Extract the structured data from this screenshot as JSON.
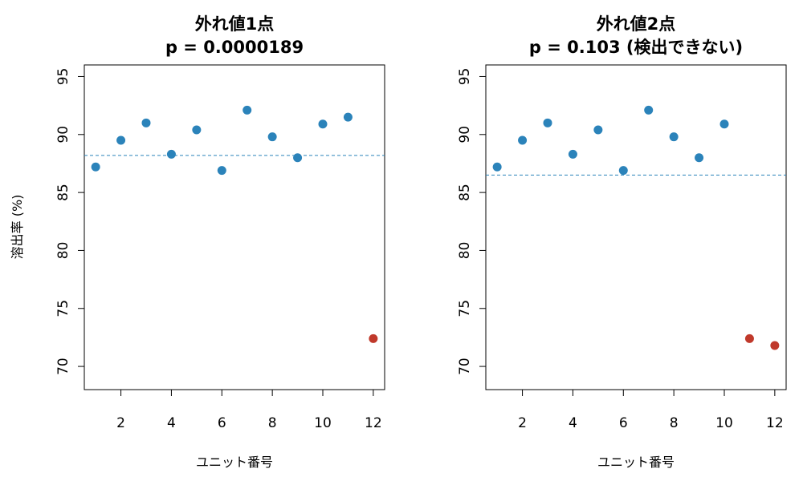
{
  "chart_data": [
    {
      "type": "scatter",
      "title": "外れ値1点",
      "subtitle": "p = 0.0000189",
      "xlabel": "ユニット番号",
      "ylabel": "溶出率 (%)",
      "xlim": [
        0.55,
        12.45
      ],
      "ylim": [
        68,
        96
      ],
      "xticks": [
        "2",
        "4",
        "6",
        "8",
        "10",
        "12"
      ],
      "yticks": [
        "70",
        "75",
        "80",
        "85",
        "90",
        "95"
      ],
      "grid": false,
      "mean_line": 88.2,
      "x": [
        1,
        2,
        3,
        4,
        5,
        6,
        7,
        8,
        9,
        10,
        11,
        12
      ],
      "y": [
        87.2,
        89.5,
        91.0,
        88.3,
        90.4,
        86.9,
        92.1,
        89.8,
        88.0,
        90.9,
        91.5,
        72.4
      ],
      "outlier": [
        false,
        false,
        false,
        false,
        false,
        false,
        false,
        false,
        false,
        false,
        false,
        true
      ]
    },
    {
      "type": "scatter",
      "title": "外れ値2点",
      "subtitle": "p = 0.103 (検出できない)",
      "xlabel": "ユニット番号",
      "ylabel": "",
      "xlim": [
        0.55,
        12.45
      ],
      "ylim": [
        68,
        96
      ],
      "xticks": [
        "2",
        "4",
        "6",
        "8",
        "10",
        "12"
      ],
      "yticks": [
        "70",
        "75",
        "80",
        "85",
        "90",
        "95"
      ],
      "grid": false,
      "mean_line": 86.5,
      "x": [
        1,
        2,
        3,
        4,
        5,
        6,
        7,
        8,
        9,
        10,
        11,
        12
      ],
      "y": [
        87.2,
        89.5,
        91.0,
        88.3,
        90.4,
        86.9,
        92.1,
        89.8,
        88.0,
        90.9,
        72.4,
        71.8
      ],
      "outlier": [
        false,
        false,
        false,
        false,
        false,
        false,
        false,
        false,
        false,
        false,
        true,
        true
      ]
    }
  ],
  "colors": {
    "point": "#2b83ba",
    "outlier": "#c0392b",
    "mean_line": "#2b83ba",
    "axis": "#000000"
  }
}
